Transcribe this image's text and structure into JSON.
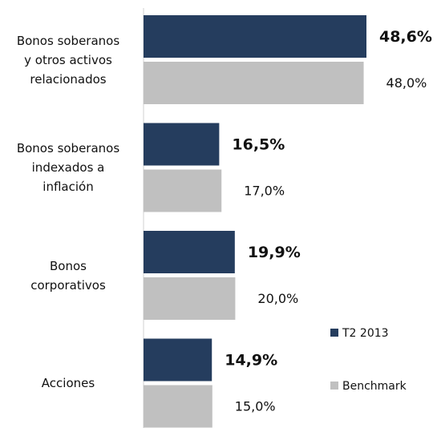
{
  "chart_data": {
    "type": "bar",
    "orientation": "horizontal",
    "categories": [
      "Bonos soberanos\ny otros activos\nrelacionados",
      "Bonos soberanos\nindexados a\ninflación",
      "Bonos\ncorporativos",
      "Acciones"
    ],
    "series": [
      {
        "name": "T2 2013",
        "color": "#253d5e",
        "values": [
          48.6,
          16.5,
          19.9,
          14.9
        ],
        "value_labels": [
          "48,6%",
          "16,5%",
          "19,9%",
          "14,9%"
        ]
      },
      {
        "name": "Benchmark",
        "color": "#c0c0c0",
        "values": [
          48.0,
          17.0,
          20.0,
          15.0
        ],
        "value_labels": [
          "48,0%",
          "17,0%",
          "20,0%",
          "15,0%"
        ]
      }
    ],
    "legend": "lower right"
  }
}
